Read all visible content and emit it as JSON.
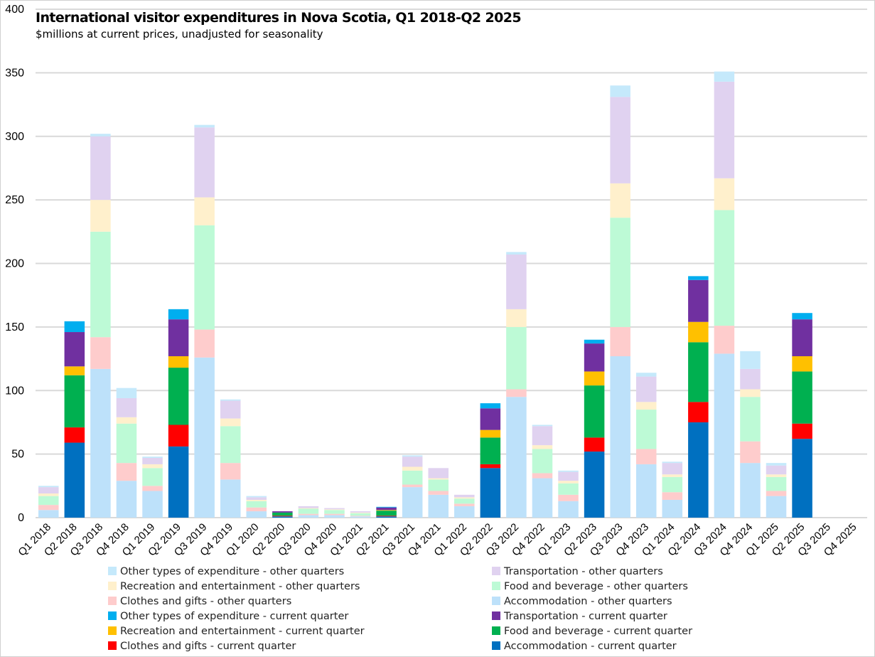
{
  "chart_data": {
    "type": "bar",
    "stacked": true,
    "title": "International visitor expenditures in Nova Scotia, Q1 2018-Q2 2025",
    "subtitle": "$millions at current prices, unadjusted for seasonality",
    "xlabel": "",
    "ylabel": "",
    "ylim": [
      0,
      400
    ],
    "yticks": [
      0,
      50,
      100,
      150,
      200,
      250,
      300,
      350,
      400
    ],
    "grid": true,
    "legend_position": "bottom",
    "categories": [
      "Q1 2018",
      "Q2 2018",
      "Q3 2018",
      "Q4 2018",
      "Q1 2019",
      "Q2 2019",
      "Q3 2019",
      "Q4 2019",
      "Q1 2020",
      "Q2 2020",
      "Q3 2020",
      "Q4 2020",
      "Q1 2021",
      "Q2 2021",
      "Q3 2021",
      "Q4 2021",
      "Q1 2022",
      "Q2 2022",
      "Q3 2022",
      "Q4 2022",
      "Q1 2023",
      "Q2 2023",
      "Q3 2023",
      "Q4 2023",
      "Q1 2024",
      "Q2 2024",
      "Q3 2024",
      "Q4 2024",
      "Q1 2025",
      "Q2 2025",
      "Q3 2025",
      "Q4 2025"
    ],
    "current_quarter_flags": [
      false,
      true,
      false,
      false,
      false,
      true,
      false,
      false,
      false,
      true,
      false,
      false,
      false,
      true,
      false,
      false,
      false,
      true,
      false,
      false,
      false,
      true,
      false,
      false,
      false,
      true,
      false,
      false,
      false,
      true,
      false,
      false
    ],
    "components": [
      {
        "key": "accommodation",
        "values": [
          6,
          59,
          117,
          29,
          21,
          56,
          126,
          30,
          5,
          1,
          2,
          2,
          1,
          1,
          24,
          18,
          9,
          39,
          95,
          31,
          13,
          52,
          127,
          42,
          14,
          75,
          129,
          43,
          17,
          62,
          null,
          null
        ]
      },
      {
        "key": "clothes",
        "values": [
          4,
          12,
          25,
          14,
          4,
          17,
          22,
          13,
          3,
          0.5,
          1,
          1,
          0.5,
          0.5,
          2,
          3,
          2,
          3,
          6,
          4,
          5,
          11,
          23,
          12,
          6,
          16,
          22,
          17,
          4,
          12,
          null,
          null
        ]
      },
      {
        "key": "food",
        "values": [
          7,
          41,
          83,
          31,
          14,
          45,
          82,
          29,
          5,
          2.5,
          4,
          3,
          2,
          4,
          11,
          9,
          4,
          21,
          49,
          19,
          9,
          41,
          86,
          31,
          12,
          47,
          91,
          35,
          11,
          41,
          null,
          null
        ]
      },
      {
        "key": "recreation",
        "values": [
          2,
          7,
          25,
          5,
          3,
          9,
          22,
          6,
          1,
          0,
          0.5,
          0.5,
          0.5,
          0.5,
          3,
          1,
          1,
          6,
          14,
          3,
          2,
          11,
          27,
          6,
          2,
          16,
          25,
          6,
          2,
          12,
          null,
          null
        ]
      },
      {
        "key": "transportation",
        "values": [
          5,
          27,
          50,
          15,
          5,
          29,
          55,
          14,
          2,
          1,
          1.5,
          1,
          1,
          2,
          8,
          8,
          2,
          17,
          43,
          15,
          7,
          22,
          68,
          20,
          9,
          33,
          76,
          16,
          7,
          29,
          null,
          null
        ]
      },
      {
        "key": "other",
        "values": [
          1,
          8.5,
          2,
          8,
          1,
          8,
          2,
          1,
          1,
          0,
          0,
          0,
          0,
          0.5,
          1,
          0,
          0,
          4,
          2,
          1,
          1,
          3,
          9,
          3,
          1,
          3,
          8,
          14,
          2,
          5,
          null,
          null
        ]
      }
    ],
    "series": [
      {
        "name": "Other types of expenditure - other quarters",
        "component": "other",
        "quarter": "other",
        "color": "#C5E9FB"
      },
      {
        "name": "Transportation - other quarters",
        "component": "transportation",
        "quarter": "other",
        "color": "#E0D2F0"
      },
      {
        "name": "Recreation and entertainment - other quarters",
        "component": "recreation",
        "quarter": "other",
        "color": "#FFF0CC"
      },
      {
        "name": "Food and beverage - other quarters",
        "component": "food",
        "quarter": "other",
        "color": "#BDFAD6"
      },
      {
        "name": "Clothes and gifts - other quarters",
        "component": "clothes",
        "quarter": "other",
        "color": "#FECCCC"
      },
      {
        "name": "Accommodation - other quarters",
        "component": "accommodation",
        "quarter": "other",
        "color": "#BDE1FA"
      },
      {
        "name": "Other types of expenditure - current quarter",
        "component": "other",
        "quarter": "current",
        "color": "#00AEEF"
      },
      {
        "name": "Transportation - current quarter",
        "component": "transportation",
        "quarter": "current",
        "color": "#7030A0"
      },
      {
        "name": "Recreation and entertainment - current quarter",
        "component": "recreation",
        "quarter": "current",
        "color": "#FFC000"
      },
      {
        "name": "Food and beverage - current quarter",
        "component": "food",
        "quarter": "current",
        "color": "#00B050"
      },
      {
        "name": "Clothes and gifts - current quarter",
        "component": "clothes",
        "quarter": "current",
        "color": "#FF0000"
      },
      {
        "name": "Accommodation - current quarter",
        "component": "accommodation",
        "quarter": "current",
        "color": "#0070C0"
      }
    ],
    "stack_order": [
      "accommodation",
      "clothes",
      "food",
      "recreation",
      "transportation",
      "other"
    ]
  }
}
